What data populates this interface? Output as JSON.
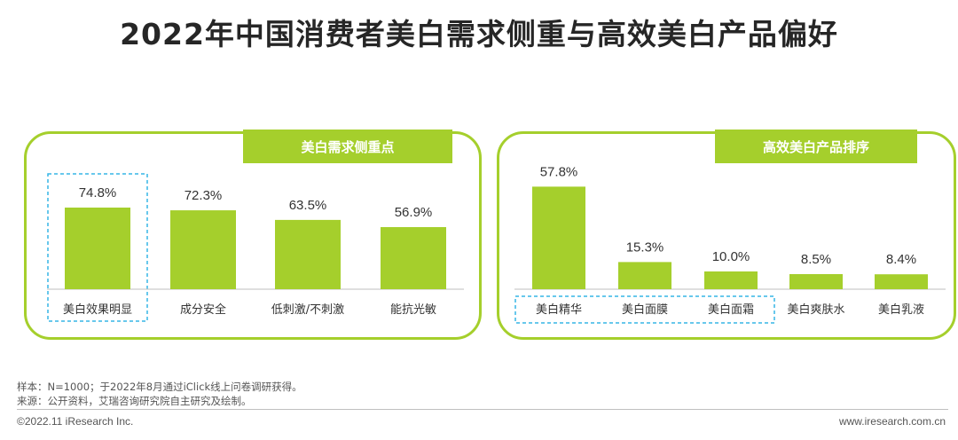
{
  "title": "2022年中国消费者美白需求侧重与高效美白产品偏好",
  "colors": {
    "accent": "#a5cf2c",
    "highlight_border": "#37b6e6"
  },
  "chart_data": [
    {
      "type": "bar",
      "panel_title": "美白需求侧重点",
      "categories": [
        "美白效果明显",
        "成分安全",
        "低刺激/不刺激",
        "能抗光敏"
      ],
      "values": [
        74.8,
        72.3,
        63.5,
        56.9
      ],
      "value_labels": [
        "74.8%",
        "72.3%",
        "63.5%",
        "56.9%"
      ],
      "highlighted": [
        "美白效果明显"
      ]
    },
    {
      "type": "bar",
      "panel_title": "高效美白产品排序",
      "categories": [
        "美白精华",
        "美白面膜",
        "美白面霜",
        "美白爽肤水",
        "美白乳液"
      ],
      "values": [
        57.8,
        15.3,
        10.0,
        8.5,
        8.4
      ],
      "value_labels": [
        "57.8%",
        "15.3%",
        "10.0%",
        "8.5%",
        "8.4%"
      ],
      "highlighted": [
        "美白精华",
        "美白面膜",
        "美白面霜"
      ]
    }
  ],
  "footnotes": {
    "sample": "样本：N=1000；于2022年8月通过iClick线上问卷调研获得。",
    "source": "来源：公开资料，艾瑞咨询研究院自主研究及绘制。"
  },
  "footer": {
    "copyright": "©2022.11 iResearch Inc.",
    "website": "www.iresearch.com.cn"
  }
}
